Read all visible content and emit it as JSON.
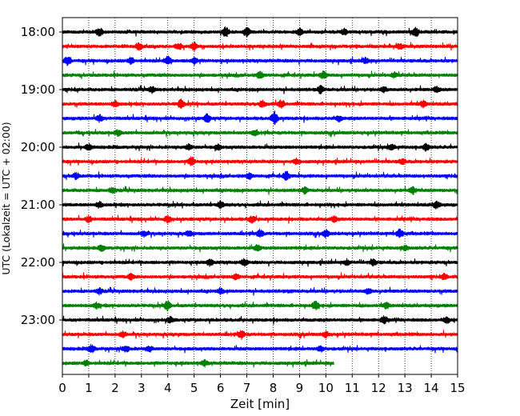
{
  "chart_data": {
    "type": "line",
    "title": "",
    "xlabel": "Zeit  [min]",
    "ylabel": "UTC (Lokalzeit = UTC + 02:00)",
    "xlim": [
      0,
      15
    ],
    "x_ticks": [
      0,
      1,
      2,
      3,
      4,
      5,
      6,
      7,
      8,
      9,
      10,
      11,
      12,
      13,
      14,
      15
    ],
    "x_tick_labels": [
      "0",
      "1",
      "2",
      "3",
      "4",
      "5",
      "6",
      "7",
      "8",
      "9",
      "10",
      "11",
      "12",
      "13",
      "14",
      "15"
    ],
    "y_tick_labels": [
      "18:00",
      "19:00",
      "20:00",
      "21:00",
      "22:00",
      "23:00"
    ],
    "y_tick_rows": [
      0,
      4,
      8,
      12,
      16,
      20
    ],
    "grid": "vertical dotted",
    "row_start_time": "18:00",
    "row_minutes": 15,
    "color_cycle": [
      "#000000",
      "#ff0000",
      "#0000ff",
      "#008000"
    ],
    "rows": [
      {
        "start": "18:00",
        "end_min": 15
      },
      {
        "start": "18:15",
        "end_min": 15
      },
      {
        "start": "18:30",
        "end_min": 15
      },
      {
        "start": "18:45",
        "end_min": 15
      },
      {
        "start": "19:00",
        "end_min": 15
      },
      {
        "start": "19:15",
        "end_min": 15
      },
      {
        "start": "19:30",
        "end_min": 15
      },
      {
        "start": "19:45",
        "end_min": 15
      },
      {
        "start": "20:00",
        "end_min": 15
      },
      {
        "start": "20:15",
        "end_min": 15
      },
      {
        "start": "20:30",
        "end_min": 15
      },
      {
        "start": "20:45",
        "end_min": 15
      },
      {
        "start": "21:00",
        "end_min": 15
      },
      {
        "start": "21:15",
        "end_min": 15
      },
      {
        "start": "21:30",
        "end_min": 15
      },
      {
        "start": "21:45",
        "end_min": 15
      },
      {
        "start": "22:00",
        "end_min": 15
      },
      {
        "start": "22:15",
        "end_min": 15
      },
      {
        "start": "22:30",
        "end_min": 15
      },
      {
        "start": "22:45",
        "end_min": 15
      },
      {
        "start": "23:00",
        "end_min": 15
      },
      {
        "start": "23:15",
        "end_min": 15
      },
      {
        "start": "23:30",
        "end_min": 15
      },
      {
        "start": "23:45",
        "end_min": 10.3
      }
    ],
    "events": [
      {
        "row": 0,
        "x": 1.4,
        "amp": 0.6
      },
      {
        "row": 0,
        "x": 6.2,
        "amp": 0.7
      },
      {
        "row": 0,
        "x": 7.0,
        "amp": 0.6
      },
      {
        "row": 0,
        "x": 9.0,
        "amp": 0.5
      },
      {
        "row": 0,
        "x": 13.4,
        "amp": 0.7
      },
      {
        "row": 0,
        "x": 10.7,
        "amp": 0.4
      },
      {
        "row": 1,
        "x": 2.9,
        "amp": 0.5
      },
      {
        "row": 1,
        "x": 4.4,
        "amp": 0.5
      },
      {
        "row": 1,
        "x": 5.0,
        "amp": 0.6
      },
      {
        "row": 1,
        "x": 12.8,
        "amp": 0.5
      },
      {
        "row": 2,
        "x": 0.2,
        "amp": 0.6
      },
      {
        "row": 2,
        "x": 2.6,
        "amp": 0.5
      },
      {
        "row": 2,
        "x": 4.0,
        "amp": 0.6
      },
      {
        "row": 2,
        "x": 5.0,
        "amp": 0.5
      },
      {
        "row": 2,
        "x": 11.5,
        "amp": 0.4
      },
      {
        "row": 3,
        "x": 7.5,
        "amp": 0.5
      },
      {
        "row": 3,
        "x": 9.9,
        "amp": 0.5
      },
      {
        "row": 3,
        "x": 12.6,
        "amp": 0.4
      },
      {
        "row": 4,
        "x": 3.4,
        "amp": 0.4
      },
      {
        "row": 4,
        "x": 9.8,
        "amp": 0.5
      },
      {
        "row": 4,
        "x": 12.2,
        "amp": 0.4
      },
      {
        "row": 4,
        "x": 14.2,
        "amp": 0.4
      },
      {
        "row": 5,
        "x": 4.5,
        "amp": 0.6
      },
      {
        "row": 5,
        "x": 7.6,
        "amp": 0.5
      },
      {
        "row": 5,
        "x": 8.3,
        "amp": 0.5
      },
      {
        "row": 5,
        "x": 13.7,
        "amp": 0.5
      },
      {
        "row": 5,
        "x": 2.0,
        "amp": 0.4
      },
      {
        "row": 6,
        "x": 1.4,
        "amp": 0.5
      },
      {
        "row": 6,
        "x": 5.5,
        "amp": 0.6
      },
      {
        "row": 6,
        "x": 8.05,
        "amp": 1.0
      },
      {
        "row": 6,
        "x": 10.5,
        "amp": 0.4
      },
      {
        "row": 7,
        "x": 2.1,
        "amp": 0.4
      },
      {
        "row": 7,
        "x": 7.3,
        "amp": 0.4
      },
      {
        "row": 8,
        "x": 1.0,
        "amp": 0.4
      },
      {
        "row": 8,
        "x": 4.8,
        "amp": 0.4
      },
      {
        "row": 8,
        "x": 5.9,
        "amp": 0.4
      },
      {
        "row": 8,
        "x": 12.5,
        "amp": 0.5
      },
      {
        "row": 8,
        "x": 13.8,
        "amp": 0.5
      },
      {
        "row": 9,
        "x": 4.9,
        "amp": 0.6
      },
      {
        "row": 9,
        "x": 8.9,
        "amp": 0.4
      },
      {
        "row": 9,
        "x": 12.9,
        "amp": 0.4
      },
      {
        "row": 10,
        "x": 0.5,
        "amp": 0.4
      },
      {
        "row": 10,
        "x": 8.5,
        "amp": 0.6
      },
      {
        "row": 10,
        "x": 7.1,
        "amp": 0.4
      },
      {
        "row": 11,
        "x": 9.2,
        "amp": 0.4
      },
      {
        "row": 11,
        "x": 13.3,
        "amp": 0.5
      },
      {
        "row": 11,
        "x": 1.9,
        "amp": 0.4
      },
      {
        "row": 12,
        "x": 6.0,
        "amp": 0.5
      },
      {
        "row": 12,
        "x": 14.2,
        "amp": 0.5
      },
      {
        "row": 12,
        "x": 1.4,
        "amp": 0.4
      },
      {
        "row": 13,
        "x": 1.0,
        "amp": 0.4
      },
      {
        "row": 13,
        "x": 4.0,
        "amp": 0.5
      },
      {
        "row": 13,
        "x": 7.2,
        "amp": 0.5
      },
      {
        "row": 13,
        "x": 10.3,
        "amp": 0.4
      },
      {
        "row": 14,
        "x": 3.1,
        "amp": 0.4
      },
      {
        "row": 14,
        "x": 7.5,
        "amp": 0.6
      },
      {
        "row": 14,
        "x": 10.0,
        "amp": 0.5
      },
      {
        "row": 14,
        "x": 12.8,
        "amp": 0.6
      },
      {
        "row": 14,
        "x": 4.8,
        "amp": 0.4
      },
      {
        "row": 15,
        "x": 1.5,
        "amp": 0.4
      },
      {
        "row": 15,
        "x": 7.4,
        "amp": 0.4
      },
      {
        "row": 15,
        "x": 13.0,
        "amp": 0.4
      },
      {
        "row": 16,
        "x": 5.6,
        "amp": 0.5
      },
      {
        "row": 16,
        "x": 6.9,
        "amp": 0.5
      },
      {
        "row": 16,
        "x": 11.8,
        "amp": 0.4
      },
      {
        "row": 16,
        "x": 10.8,
        "amp": 0.4
      },
      {
        "row": 17,
        "x": 2.6,
        "amp": 0.4
      },
      {
        "row": 17,
        "x": 6.6,
        "amp": 0.4
      },
      {
        "row": 17,
        "x": 14.5,
        "amp": 0.4
      },
      {
        "row": 18,
        "x": 1.4,
        "amp": 0.4
      },
      {
        "row": 18,
        "x": 6.0,
        "amp": 0.4
      },
      {
        "row": 18,
        "x": 11.6,
        "amp": 0.4
      },
      {
        "row": 19,
        "x": 1.3,
        "amp": 0.4
      },
      {
        "row": 19,
        "x": 4.0,
        "amp": 0.7
      },
      {
        "row": 19,
        "x": 9.6,
        "amp": 0.6
      },
      {
        "row": 19,
        "x": 12.3,
        "amp": 0.4
      },
      {
        "row": 20,
        "x": 4.1,
        "amp": 0.4
      },
      {
        "row": 20,
        "x": 12.2,
        "amp": 0.5
      },
      {
        "row": 20,
        "x": 14.6,
        "amp": 0.4
      },
      {
        "row": 21,
        "x": 6.8,
        "amp": 0.6
      },
      {
        "row": 21,
        "x": 2.3,
        "amp": 0.4
      },
      {
        "row": 21,
        "x": 10.0,
        "amp": 0.4
      },
      {
        "row": 22,
        "x": 1.1,
        "amp": 0.6
      },
      {
        "row": 22,
        "x": 2.4,
        "amp": 0.5
      },
      {
        "row": 22,
        "x": 3.3,
        "amp": 0.4
      },
      {
        "row": 22,
        "x": 9.8,
        "amp": 0.4
      },
      {
        "row": 23,
        "x": 0.9,
        "amp": 0.4
      },
      {
        "row": 23,
        "x": 5.4,
        "amp": 0.4
      }
    ]
  }
}
